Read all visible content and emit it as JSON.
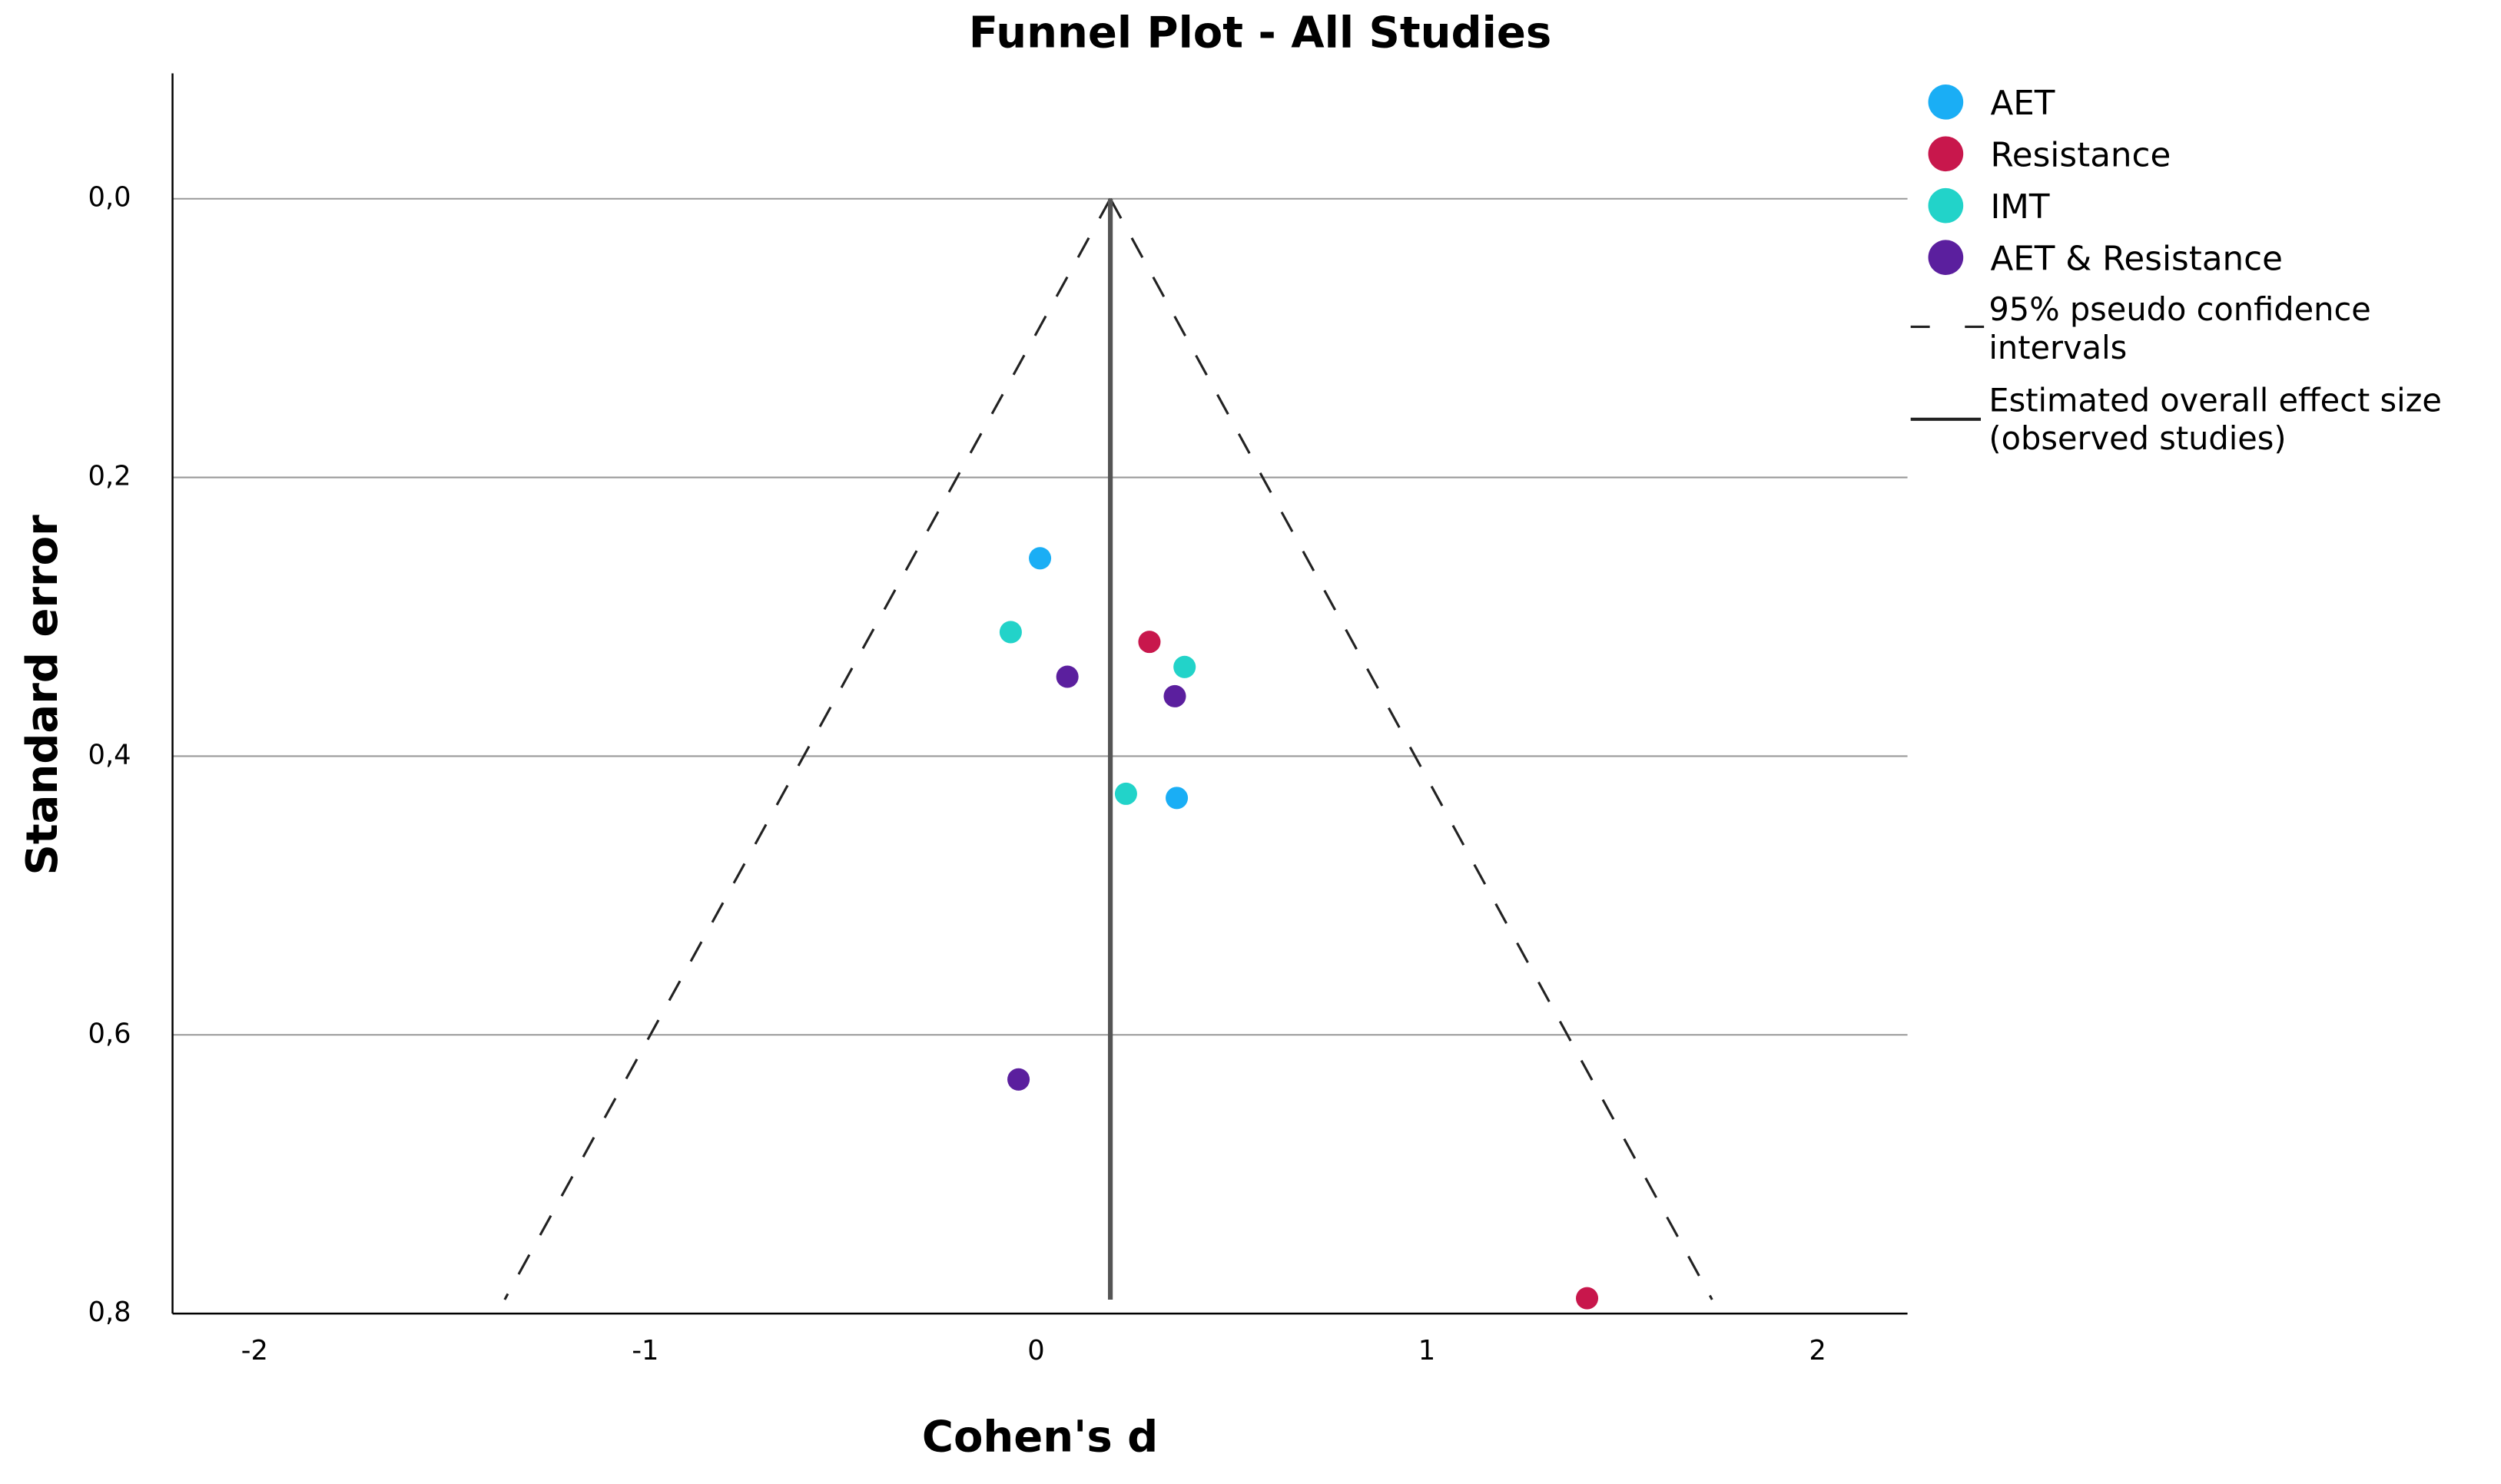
{
  "chart_data": {
    "type": "scatter",
    "title": "Funnel Plot - All Studies",
    "x_label": "Cohen's d",
    "y_label": "Standard error",
    "xlim": [
      -2.21,
      2.23
    ],
    "ylim": [
      -0.09,
      0.8
    ],
    "y_inverted": true,
    "xticks": [
      -2,
      -1,
      0,
      1,
      2
    ],
    "yticks": [
      {
        "value": 0,
        "label": "0,0"
      },
      {
        "value": 0.2,
        "label": "0,2"
      },
      {
        "value": 0.4,
        "label": "0,4"
      },
      {
        "value": 0.6,
        "label": "0,6"
      },
      {
        "value": 0.8,
        "label": "0,8"
      }
    ],
    "grid": true,
    "series": [
      {
        "name": "AET",
        "color": "#1aaef5",
        "x": [
          0.01,
          0.36
        ],
        "values": [
          0.258,
          0.43
        ]
      },
      {
        "name": "Resistance",
        "color": "#c8174c",
        "x": [
          0.29,
          1.41
        ],
        "values": [
          0.318,
          0.789
        ]
      },
      {
        "name": "IMT",
        "color": "#22d3c9",
        "x": [
          -0.065,
          0.38,
          0.23
        ],
        "values": [
          0.311,
          0.336,
          0.427
        ]
      },
      {
        "name": "AET & Resistance",
        "color": "#5b1f9e",
        "x": [
          0.08,
          0.355,
          -0.045
        ],
        "values": [
          0.343,
          0.357,
          0.632
        ]
      }
    ],
    "confidence_lines": {
      "name": "95% pseudo confidence intervals",
      "left": {
        "x": [
          0.19,
          -1.36
        ],
        "values": [
          0,
          0.79
        ]
      },
      "right": {
        "x": [
          0.19,
          1.73
        ],
        "values": [
          0,
          0.79
        ]
      }
    },
    "effect_line": {
      "name": "Estimated overall effect size (observed studies)",
      "x": [
        0.19,
        0.19
      ],
      "values": [
        0,
        0.79
      ]
    }
  }
}
